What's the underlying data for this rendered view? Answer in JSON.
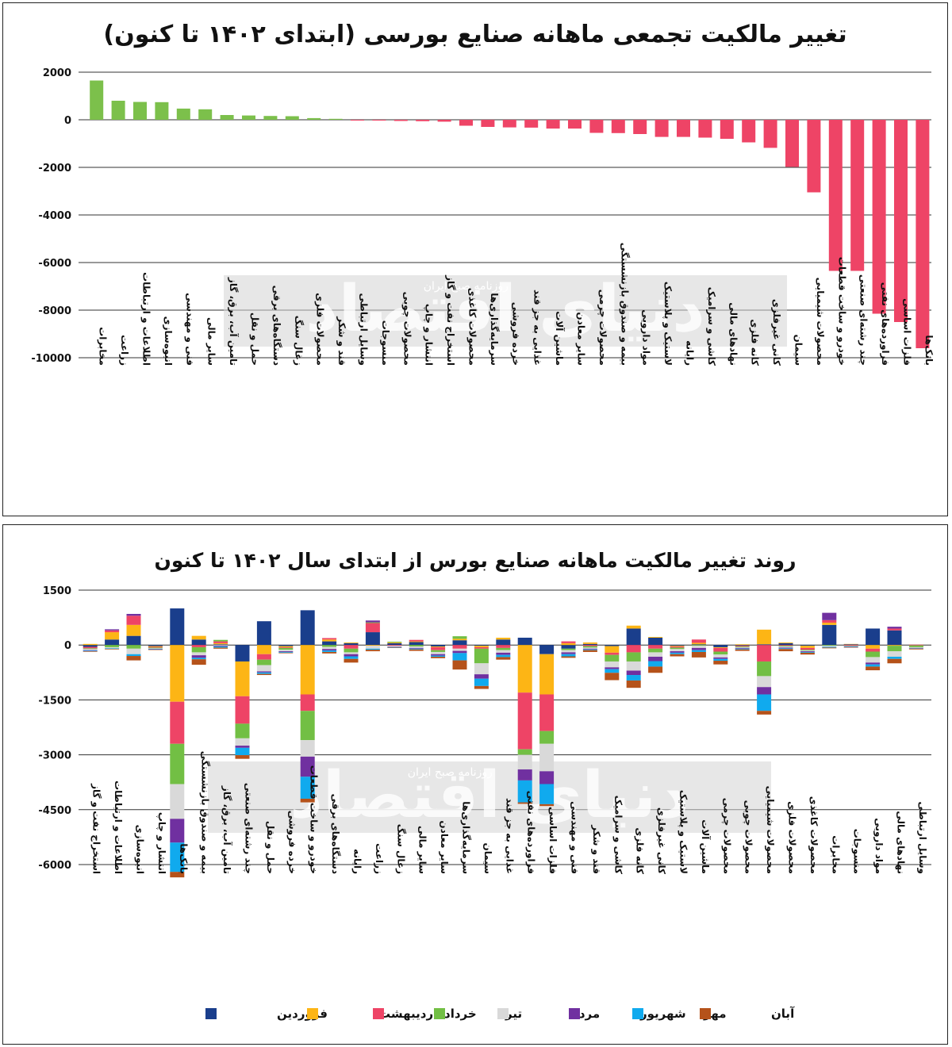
{
  "chart_data": [
    {
      "type": "bar",
      "title": "تغییر مالکیت تجمعی ماهانه صنایع بورسی (ابتدای ۱۴۰۲ تا کنون)",
      "xlabel": "",
      "ylabel": "",
      "ylim": [
        -10000,
        2000
      ],
      "yticks": [
        2000,
        0,
        -2000,
        -4000,
        -6000,
        -8000,
        -10000
      ],
      "ytick_labels": [
        "2000",
        "0",
        "-2000",
        "-4000",
        "-6000",
        "-8000",
        "-10000"
      ],
      "grid": true,
      "positive_color": "#7cc04b",
      "negative_color": "#ee4466",
      "categories": [
        "مخابرات",
        "زراعت",
        "اطلاعات و ارتباطات",
        "انبوه‌سازی",
        "فنی و مهندسی",
        "سایر مالی",
        "تامین آب، برق، گاز",
        "حمل و نقل",
        "دستگاه‌های برقی",
        "زغال سنگ",
        "محصولات فلزی",
        "قند و شکر",
        "وسایل ارتباطی",
        "منسوجات",
        "محصولات چوبی",
        "انتشار و چاپ",
        "استخراج نفت و گاز",
        "محصولات کاغذی",
        "سرمایه‌گذاری‌ها",
        "خرده فروشی",
        "غذایی به جز قند",
        "ماشین آلات",
        "سایر معادن",
        "محصولات چرمی",
        "بیمه و صندوق بازنشستگی",
        "مواد دارویی",
        "لاستیک و پلاستیک",
        "رایانه",
        "کاشی و سرامیک",
        "نهادهای مالی",
        "کانه فلزی",
        "کانی غیرفلزی",
        "سیمان",
        "محصولات شیمیایی",
        "خودرو و ساخت قطعات",
        "چند رشته‌ای صنعتی",
        "فراورده‌های نفتی",
        "فلزات اساسی",
        "بانک‌ها"
      ],
      "values": [
        1650,
        800,
        750,
        740,
        470,
        440,
        200,
        180,
        160,
        150,
        70,
        40,
        -10,
        -20,
        -50,
        -60,
        -80,
        -250,
        -300,
        -320,
        -330,
        -370,
        -370,
        -550,
        -560,
        -600,
        -720,
        -720,
        -750,
        -800,
        -950,
        -1180,
        -1980,
        -3050,
        -6350,
        -6350,
        -8150,
        -8500,
        -9600
      ]
    },
    {
      "type": "bar",
      "stacked": true,
      "title": "روند تغییر مالکیت ماهانه صنایع بورس از ابتدای سال ۱۴۰۲ تا کنون",
      "xlabel": "",
      "ylabel": "",
      "ylim": [
        -6000,
        1500
      ],
      "yticks": [
        1500,
        0,
        -1500,
        -3000,
        -4500,
        -6000
      ],
      "ytick_labels": [
        "1500",
        "0",
        "-1500",
        "-3000",
        "-4500",
        "-6000"
      ],
      "grid": true,
      "legend": "bottom",
      "categories": [
        "استخراج نفت و گاز",
        "اطلاعات و ارتباطات",
        "انبوه‌سازی",
        "انتشار و چاپ",
        "بانک‌ها",
        "بیمه و صندوق بازنشستگی",
        "تامین آب، برق، گاز",
        "چند رشته‌ای صنعتی",
        "حمل و نقل",
        "خرده فروشی",
        "خودرو و ساخت قطعات",
        "دستگاه‌های برقی",
        "رایانه",
        "زراعت",
        "زغال سنگ",
        "سایر مالی",
        "سایر معادن",
        "سرمایه‌گذاری‌ها",
        "سیمان",
        "غذایی به جز قند",
        "فراورده‌های نفتی",
        "فلزات اساسی",
        "فنی و مهندسی",
        "قند و شکر",
        "کاشی و سرامیک",
        "کانه فلزی",
        "کانی غیرفلزی",
        "لاستیک و پلاستیک",
        "ماشین آلات",
        "محصولات چرمی",
        "محصولات چوبی",
        "محصولات شیمیایی",
        "محصولات فلزی",
        "محصولات کاغذی",
        "مخابرات",
        "منسوجات",
        "مواد دارویی",
        "نهادهای مالی",
        "وسایل ارتباطی"
      ],
      "series": [
        {
          "name": "فروردین",
          "color": "#1a3e8c",
          "values": [
            -50,
            150,
            250,
            -30,
            1000,
            150,
            20,
            -450,
            650,
            -30,
            950,
            100,
            50,
            350,
            50,
            80,
            -40,
            130,
            -20,
            150,
            200,
            -250,
            -100,
            30,
            -30,
            450,
            200,
            -20,
            20,
            -60,
            -20,
            20,
            50,
            -20,
            550,
            20,
            450,
            400,
            -10
          ]
        },
        {
          "name": "اردیبهشت",
          "color": "#fdb515",
          "values": [
            30,
            200,
            300,
            -20,
            -1550,
            100,
            30,
            -950,
            -250,
            -30,
            -1350,
            50,
            20,
            -20,
            20,
            20,
            -20,
            40,
            -40,
            50,
            -1300,
            -1100,
            50,
            40,
            -180,
            80,
            20,
            -20,
            40,
            -20,
            20,
            400,
            20,
            -60,
            60,
            10,
            -100,
            -20,
            -10
          ]
        },
        {
          "name": "خرداد",
          "color": "#ee4466",
          "values": [
            -40,
            50,
            250,
            -20,
            -1150,
            -60,
            50,
            -750,
            -150,
            -20,
            -450,
            40,
            -100,
            250,
            -20,
            40,
            -80,
            -100,
            -40,
            -80,
            -1550,
            -1000,
            50,
            -30,
            -60,
            -200,
            -100,
            -30,
            90,
            -100,
            -20,
            -450,
            -20,
            -50,
            70,
            -20,
            -80,
            50,
            10
          ]
        },
        {
          "name": "تیر",
          "color": "#72bf44",
          "values": [
            -20,
            -60,
            -100,
            -20,
            -1100,
            -140,
            40,
            -400,
            -150,
            -50,
            -800,
            -50,
            -100,
            20,
            20,
            -40,
            -50,
            70,
            -400,
            -60,
            -150,
            -350,
            -40,
            -40,
            -180,
            -250,
            -100,
            -40,
            -20,
            -80,
            -20,
            -400,
            -20,
            -20,
            -20,
            -10,
            -150,
            -150,
            -40
          ]
        },
        {
          "name": "مرداد",
          "color": "#d9d9d9",
          "values": [
            -30,
            -30,
            -150,
            -15,
            -950,
            -80,
            -20,
            -200,
            -170,
            -40,
            -450,
            -60,
            -50,
            -80,
            -30,
            -40,
            -60,
            -60,
            -300,
            -70,
            -400,
            -750,
            -60,
            -30,
            -160,
            -250,
            -120,
            -60,
            -60,
            -80,
            -20,
            -300,
            -30,
            -20,
            -30,
            -10,
            -150,
            -150,
            -20
          ]
        },
        {
          "name": "شهریور",
          "color": "#7030a0",
          "values": [
            -15,
            30,
            50,
            -10,
            -650,
            -70,
            -20,
            -60,
            -30,
            -20,
            -550,
            -40,
            -60,
            50,
            -10,
            -20,
            -40,
            -60,
            -120,
            -60,
            -300,
            -350,
            -50,
            -20,
            -50,
            -120,
            -120,
            -40,
            -60,
            -40,
            -20,
            -200,
            -20,
            -20,
            200,
            -10,
            -50,
            50,
            -10
          ]
        },
        {
          "name": "مهر",
          "color": "#10aaee",
          "values": [
            -15,
            -15,
            -50,
            -10,
            -800,
            -40,
            -30,
            -200,
            -40,
            -20,
            -600,
            -40,
            -70,
            -30,
            -10,
            -20,
            -30,
            -200,
            -200,
            -60,
            -600,
            -550,
            -60,
            -20,
            -100,
            -150,
            -150,
            -40,
            -50,
            -50,
            -20,
            -450,
            -20,
            -20,
            -20,
            -10,
            -60,
            -60,
            -10
          ]
        },
        {
          "name": "آبان",
          "color": "#b5521a",
          "values": [
            -15,
            -15,
            -120,
            -10,
            -150,
            -150,
            -30,
            -100,
            -30,
            -15,
            -100,
            -40,
            -100,
            -40,
            -10,
            -40,
            -40,
            -250,
            -80,
            -70,
            -40,
            -50,
            -40,
            -50,
            -200,
            -200,
            -170,
            -60,
            -150,
            -100,
            -40,
            -100,
            -60,
            -50,
            -20,
            -10,
            -100,
            -120,
            -20
          ]
        }
      ]
    }
  ],
  "watermark": {
    "brand": "دنیای اقتصاد",
    "tagline": "روزنامه صبح ایران"
  }
}
